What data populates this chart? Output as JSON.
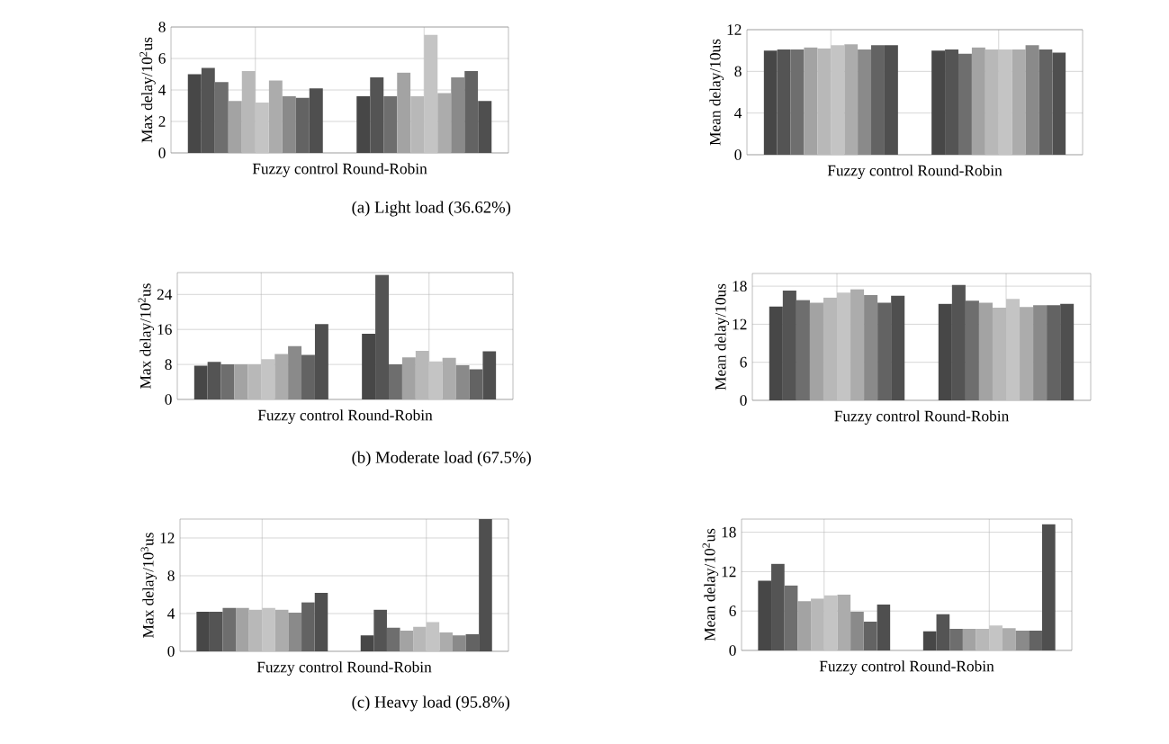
{
  "chart_data": [
    {
      "type": "bar",
      "categories": [
        null,
        null
      ],
      "xlabel": "Fuzzy control Round-Robin",
      "ylabel": "Max delay/10$^{2}$us",
      "ylim": [
        0,
        8
      ],
      "yticks": [
        0,
        2,
        4,
        6,
        8
      ],
      "grid": true,
      "tick_labels": "y",
      "annotations": [
        "(a)  Light load (36.62%)"
      ],
      "series": [
        {
          "color": "#474747",
          "values": [
            5.0,
            3.6
          ]
        },
        {
          "color": "#545454",
          "values": [
            5.4,
            4.8
          ]
        },
        {
          "color": "#6e6e6e",
          "values": [
            4.5,
            3.6
          ]
        },
        {
          "color": "#a3a3a3",
          "values": [
            3.3,
            5.1
          ]
        },
        {
          "color": "#b8b8b8",
          "values": [
            5.2,
            3.6
          ]
        },
        {
          "color": "#c4c4c4",
          "values": [
            3.2,
            7.5
          ]
        },
        {
          "color": "#acacac",
          "values": [
            4.6,
            3.8
          ]
        },
        {
          "color": "#8a8a8a",
          "values": [
            3.6,
            4.8
          ]
        },
        {
          "color": "#636363",
          "values": [
            3.5,
            5.2
          ]
        },
        {
          "color": "#4f4f4f",
          "values": [
            4.1,
            3.3
          ]
        }
      ]
    },
    {
      "type": "bar",
      "categories": [
        null,
        null
      ],
      "xlabel": "Fuzzy control Round-Robin",
      "ylabel": "Mean delay/10us",
      "ylim": [
        0,
        12
      ],
      "yticks": [
        0,
        4,
        8,
        12
      ],
      "grid": true,
      "tick_labels": "y",
      "series": [
        {
          "color": "#474747",
          "values": [
            10.0,
            10.0
          ]
        },
        {
          "color": "#545454",
          "values": [
            10.1,
            10.1
          ]
        },
        {
          "color": "#6e6e6e",
          "values": [
            10.1,
            9.7
          ]
        },
        {
          "color": "#a3a3a3",
          "values": [
            10.3,
            10.3
          ]
        },
        {
          "color": "#b8b8b8",
          "values": [
            10.2,
            10.1
          ]
        },
        {
          "color": "#c4c4c4",
          "values": [
            10.5,
            10.1
          ]
        },
        {
          "color": "#acacac",
          "values": [
            10.6,
            10.1
          ]
        },
        {
          "color": "#8a8a8a",
          "values": [
            10.1,
            10.5
          ]
        },
        {
          "color": "#636363",
          "values": [
            10.5,
            10.1
          ]
        },
        {
          "color": "#4f4f4f",
          "values": [
            10.5,
            9.8
          ]
        }
      ]
    },
    {
      "type": "bar",
      "categories": [
        null,
        null
      ],
      "xlabel": "Fuzzy control Round-Robin",
      "ylabel": "Max delay/10$^{2}$us",
      "ylim": [
        0,
        29
      ],
      "yticks": [
        0,
        8,
        16,
        24
      ],
      "grid": true,
      "tick_labels": "y",
      "annotations": [
        "(b)  Moderate load (67.5%)"
      ],
      "series": [
        {
          "color": "#474747",
          "values": [
            7.7,
            15.0
          ]
        },
        {
          "color": "#545454",
          "values": [
            8.6,
            28.5
          ]
        },
        {
          "color": "#6e6e6e",
          "values": [
            8.0,
            8.0
          ]
        },
        {
          "color": "#a3a3a3",
          "values": [
            8.0,
            9.6
          ]
        },
        {
          "color": "#b8b8b8",
          "values": [
            8.0,
            11.1
          ]
        },
        {
          "color": "#c4c4c4",
          "values": [
            9.2,
            8.7
          ]
        },
        {
          "color": "#acacac",
          "values": [
            10.4,
            9.5
          ]
        },
        {
          "color": "#8a8a8a",
          "values": [
            12.2,
            7.8
          ]
        },
        {
          "color": "#636363",
          "values": [
            10.2,
            6.9
          ]
        },
        {
          "color": "#4f4f4f",
          "values": [
            17.2,
            11.0
          ]
        }
      ]
    },
    {
      "type": "bar",
      "categories": [
        null,
        null
      ],
      "xlabel": "Fuzzy control Round-Robin",
      "ylabel": "Mean delay/10us",
      "ylim": [
        0,
        20
      ],
      "yticks": [
        0,
        6,
        12,
        18
      ],
      "grid": true,
      "tick_labels": "y",
      "series": [
        {
          "color": "#474747",
          "values": [
            14.8,
            15.2
          ]
        },
        {
          "color": "#545454",
          "values": [
            17.3,
            18.2
          ]
        },
        {
          "color": "#6e6e6e",
          "values": [
            15.8,
            15.7
          ]
        },
        {
          "color": "#a3a3a3",
          "values": [
            15.4,
            15.4
          ]
        },
        {
          "color": "#b8b8b8",
          "values": [
            16.2,
            14.6
          ]
        },
        {
          "color": "#c4c4c4",
          "values": [
            17.0,
            16.0
          ]
        },
        {
          "color": "#acacac",
          "values": [
            17.5,
            14.7
          ]
        },
        {
          "color": "#8a8a8a",
          "values": [
            16.6,
            15.0
          ]
        },
        {
          "color": "#636363",
          "values": [
            15.4,
            15.0
          ]
        },
        {
          "color": "#4f4f4f",
          "values": [
            16.5,
            15.2
          ]
        }
      ]
    },
    {
      "type": "bar",
      "categories": [
        null,
        null
      ],
      "xlabel": "Fuzzy control Round-Robin",
      "ylabel": "Max delay/10$^{3}$us",
      "ylim": [
        0,
        14
      ],
      "yticks": [
        0,
        4,
        8,
        12
      ],
      "grid": true,
      "tick_labels": "y",
      "annotations": [
        "(c)  Heavy load (95.8%)"
      ],
      "series": [
        {
          "color": "#474747",
          "values": [
            4.2,
            1.7
          ]
        },
        {
          "color": "#545454",
          "values": [
            4.2,
            4.4
          ]
        },
        {
          "color": "#6e6e6e",
          "values": [
            4.6,
            2.5
          ]
        },
        {
          "color": "#a3a3a3",
          "values": [
            4.6,
            2.2
          ]
        },
        {
          "color": "#b8b8b8",
          "values": [
            4.4,
            2.6
          ]
        },
        {
          "color": "#c4c4c4",
          "values": [
            4.6,
            3.1
          ]
        },
        {
          "color": "#acacac",
          "values": [
            4.4,
            2.0
          ]
        },
        {
          "color": "#8a8a8a",
          "values": [
            4.1,
            1.7
          ]
        },
        {
          "color": "#636363",
          "values": [
            5.2,
            1.8
          ]
        },
        {
          "color": "#4f4f4f",
          "values": [
            6.2,
            14.0
          ]
        }
      ]
    },
    {
      "type": "bar",
      "categories": [
        null,
        null
      ],
      "xlabel": "Fuzzy control Round-Robin",
      "ylabel": "Mean delay/10$^{2}$us",
      "ylim": [
        0,
        20
      ],
      "yticks": [
        0,
        6,
        12,
        18
      ],
      "grid": true,
      "tick_labels": "y",
      "series": [
        {
          "color": "#474747",
          "values": [
            10.6,
            2.9
          ]
        },
        {
          "color": "#545454",
          "values": [
            13.2,
            5.5
          ]
        },
        {
          "color": "#6e6e6e",
          "values": [
            9.9,
            3.3
          ]
        },
        {
          "color": "#a3a3a3",
          "values": [
            7.5,
            3.3
          ]
        },
        {
          "color": "#b8b8b8",
          "values": [
            7.9,
            3.3
          ]
        },
        {
          "color": "#c4c4c4",
          "values": [
            8.4,
            3.8
          ]
        },
        {
          "color": "#acacac",
          "values": [
            8.5,
            3.4
          ]
        },
        {
          "color": "#8a8a8a",
          "values": [
            5.9,
            3.0
          ]
        },
        {
          "color": "#636363",
          "values": [
            4.4,
            3.0
          ]
        },
        {
          "color": "#4f4f4f",
          "values": [
            7.0,
            19.2
          ]
        }
      ]
    }
  ]
}
